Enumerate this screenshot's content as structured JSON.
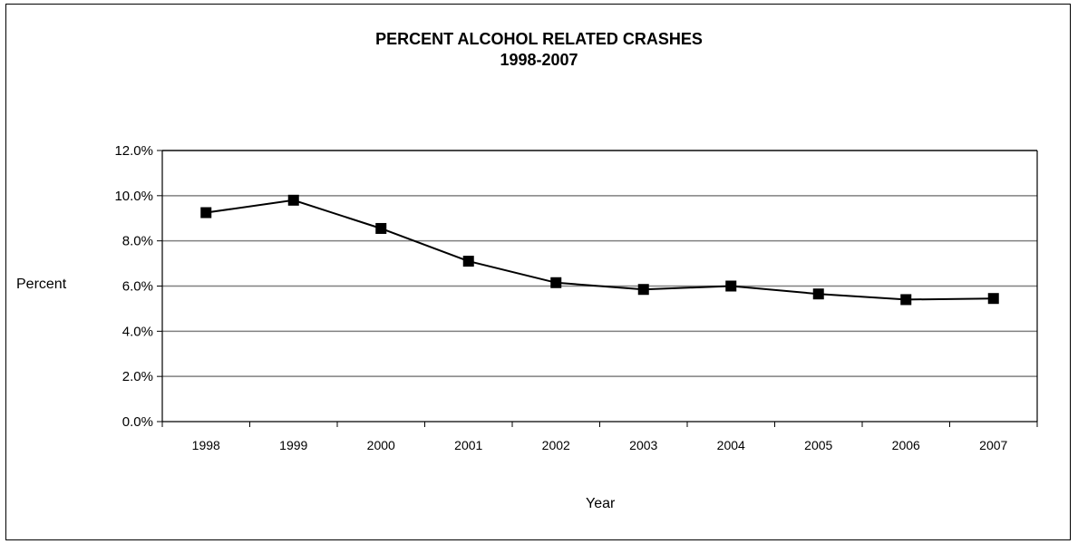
{
  "chart_data": {
    "type": "line",
    "title": "PERCENT ALCOHOL RELATED CRASHES",
    "subtitle": "1998-2007",
    "xlabel": "Year",
    "ylabel": "Percent",
    "categories": [
      "1998",
      "1999",
      "2000",
      "2001",
      "2002",
      "2003",
      "2004",
      "2005",
      "2006",
      "2007"
    ],
    "values": [
      9.25,
      9.8,
      8.55,
      7.1,
      6.15,
      5.85,
      6.0,
      5.65,
      5.4,
      5.45
    ],
    "ylim": [
      0,
      12
    ],
    "yticks": [
      0,
      2,
      4,
      6,
      8,
      10,
      12
    ],
    "ytick_labels": [
      "0.0%",
      "2.0%",
      "4.0%",
      "6.0%",
      "8.0%",
      "10.0%",
      "12.0%"
    ],
    "grid": true,
    "legend": "none",
    "marker": "square",
    "colors": {
      "line": "#000000",
      "marker": "#000000",
      "grid": "#808080",
      "border": "#000000"
    }
  }
}
